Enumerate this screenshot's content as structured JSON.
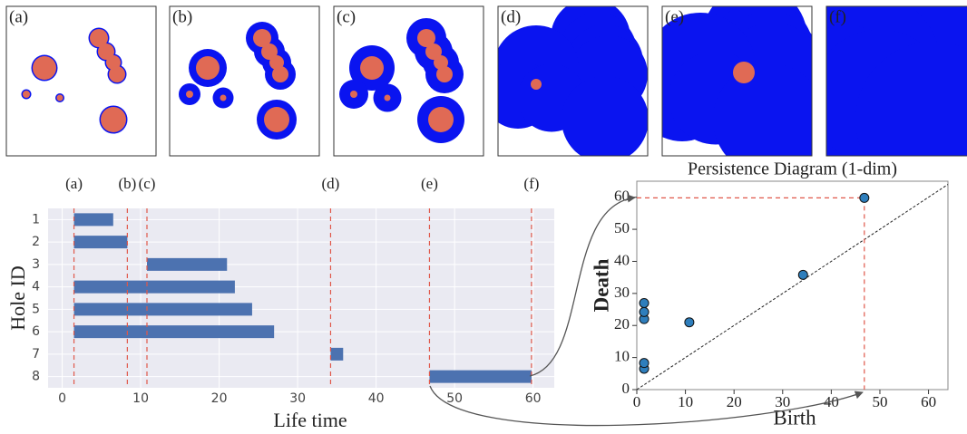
{
  "panels": [
    "(a)",
    "(b)",
    "(c)",
    "(d)",
    "(e)",
    "(f)"
  ],
  "chart_data": [
    {
      "type": "barcode",
      "xlabel": "Life time",
      "ylabel": "Hole ID",
      "categories": [
        "1",
        "2",
        "3",
        "4",
        "5",
        "6",
        "7",
        "8"
      ],
      "start": [
        1.5,
        1.5,
        10.8,
        1.5,
        1.5,
        1.5,
        34.2,
        46.8
      ],
      "end": [
        6.5,
        8.3,
        21,
        22,
        24.2,
        27,
        35.8,
        59.8
      ],
      "color": "#4c72b0",
      "xlim": [
        -1.8,
        62.7
      ],
      "xticks": [
        0,
        10,
        20,
        30,
        40,
        50,
        60
      ],
      "grid": true,
      "markers": {
        "labels": [
          "(a)",
          "(b)",
          "(c)",
          "(d)",
          "(e)",
          "(f)"
        ],
        "x": [
          1.5,
          8.3,
          10.8,
          34.2,
          46.8,
          59.8
        ],
        "color": "#e0584a"
      }
    },
    {
      "type": "scatter",
      "title": "Persistence Diagram (1-dim)",
      "xlabel": "Birth",
      "ylabel": "Death",
      "x": [
        1.5,
        1.5,
        10.8,
        1.5,
        1.5,
        1.5,
        34.2,
        46.8
      ],
      "y": [
        6.5,
        8.3,
        21,
        22,
        24.2,
        27,
        35.8,
        59.8
      ],
      "color": "#2e7ebc",
      "xlim": [
        0,
        64
      ],
      "ylim": [
        0,
        65
      ],
      "xticks": [
        0,
        10,
        20,
        30,
        40,
        50,
        60
      ],
      "yticks": [
        0,
        10,
        20,
        30,
        40,
        50,
        60
      ],
      "diagonal": true
    }
  ]
}
